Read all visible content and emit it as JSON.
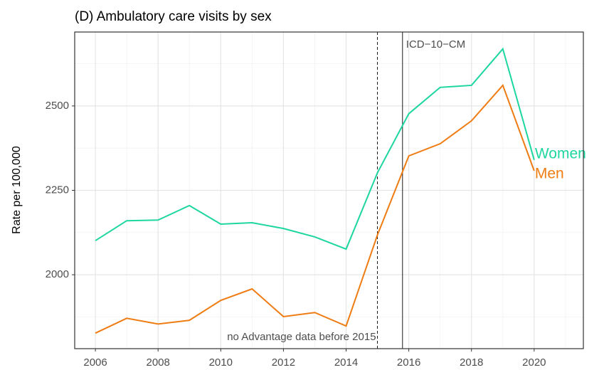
{
  "chart_data": {
    "type": "line",
    "title": "(D) Ambulatory care visits by sex",
    "y_label": "Rate per 100,000",
    "x": [
      2006,
      2007,
      2008,
      2009,
      2010,
      2011,
      2012,
      2013,
      2014,
      2015,
      2016,
      2017,
      2018,
      2019,
      2020
    ],
    "series": [
      {
        "name": "Women",
        "color": "#1ed6a0",
        "values": [
          2101,
          2160,
          2162,
          2205,
          2150,
          2154,
          2137,
          2112,
          2076,
          2302,
          2477,
          2555,
          2561,
          2669,
          2340
        ]
      },
      {
        "name": "Men",
        "color": "#ef7c12",
        "values": [
          1827,
          1871,
          1854,
          1865,
          1924,
          1958,
          1876,
          1888,
          1848,
          2118,
          2352,
          2388,
          2456,
          2561,
          2308
        ]
      }
    ],
    "xlim": [
      2005.34,
      2021.57
    ],
    "ylim": [
      1781,
      2719
    ],
    "xticks": [
      2006,
      2008,
      2010,
      2012,
      2014,
      2016,
      2018,
      2020
    ],
    "yticks": [
      2000,
      2250,
      2500
    ],
    "x_minor_ticks": [
      2007,
      2009,
      2011,
      2013,
      2015,
      2017,
      2019,
      2021
    ],
    "y_minor_ticks": [
      1875,
      2125,
      2375,
      2625
    ],
    "grid": true,
    "vlines": [
      {
        "x": 2015,
        "style": "dashed",
        "label": "no Advantage data before 2015"
      },
      {
        "x": 2015.8,
        "style": "solid",
        "label": "ICD−10−CM"
      }
    ]
  }
}
